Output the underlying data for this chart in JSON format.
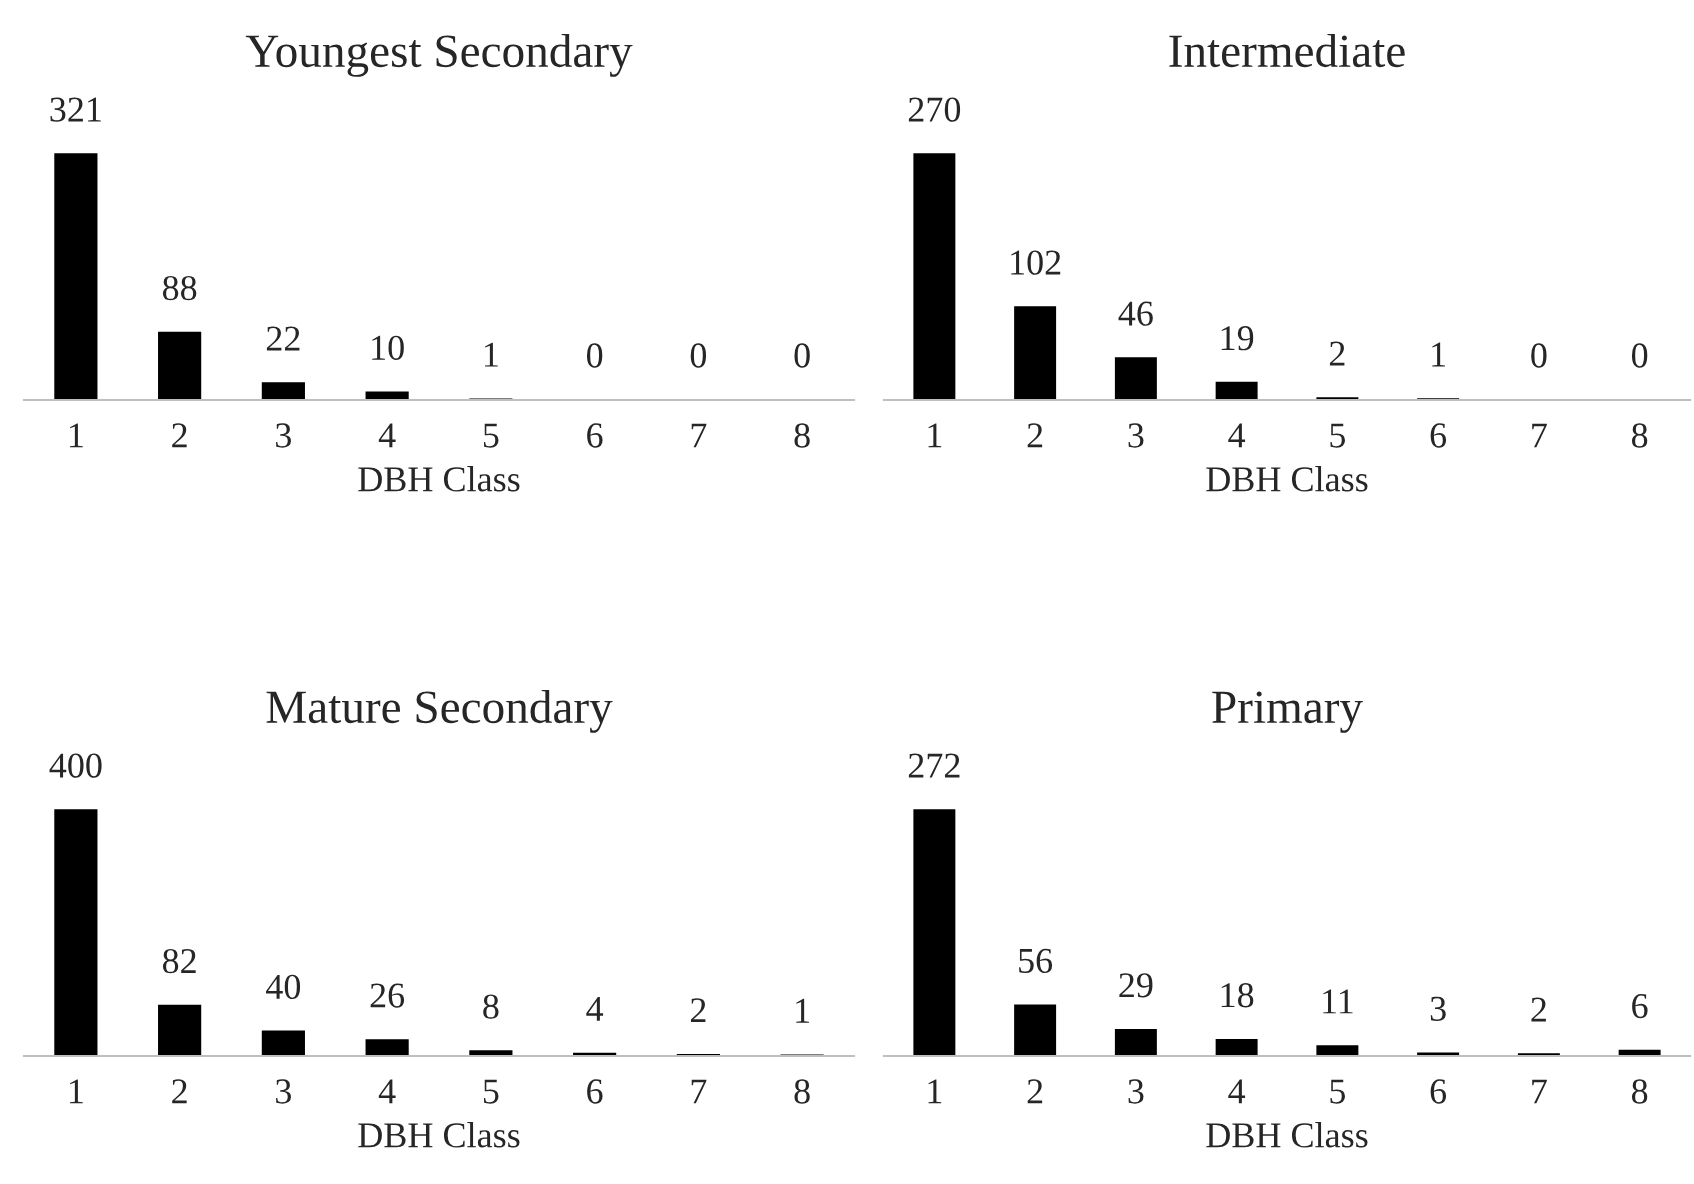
{
  "chart_data": [
    {
      "type": "bar",
      "title": "Youngest Secondary",
      "xlabel": "DBH Class",
      "categories": [
        "1",
        "2",
        "3",
        "4",
        "5",
        "6",
        "7",
        "8"
      ],
      "values": [
        321,
        88,
        22,
        10,
        1,
        0,
        0,
        0
      ],
      "color": "#000000",
      "data_labels": true,
      "grid": false,
      "legend": false,
      "tick_labels": "x"
    },
    {
      "type": "bar",
      "title": "Intermediate",
      "xlabel": "DBH Class",
      "categories": [
        "1",
        "2",
        "3",
        "4",
        "5",
        "6",
        "7",
        "8"
      ],
      "values": [
        270,
        102,
        46,
        19,
        2,
        1,
        0,
        0
      ],
      "color": "#000000",
      "data_labels": true,
      "grid": false,
      "legend": false,
      "tick_labels": "x"
    },
    {
      "type": "bar",
      "title": "Mature Secondary",
      "xlabel": "DBH Class",
      "categories": [
        "1",
        "2",
        "3",
        "4",
        "5",
        "6",
        "7",
        "8"
      ],
      "values": [
        400,
        82,
        40,
        26,
        8,
        4,
        2,
        1
      ],
      "color": "#000000",
      "data_labels": true,
      "grid": false,
      "legend": false,
      "tick_labels": "x"
    },
    {
      "type": "bar",
      "title": "Primary",
      "xlabel": "DBH Class",
      "categories": [
        "1",
        "2",
        "3",
        "4",
        "5",
        "6",
        "7",
        "8"
      ],
      "values": [
        272,
        56,
        29,
        18,
        11,
        3,
        2,
        6
      ],
      "color": "#000000",
      "data_labels": true,
      "grid": false,
      "legend": false,
      "tick_labels": "x"
    }
  ]
}
